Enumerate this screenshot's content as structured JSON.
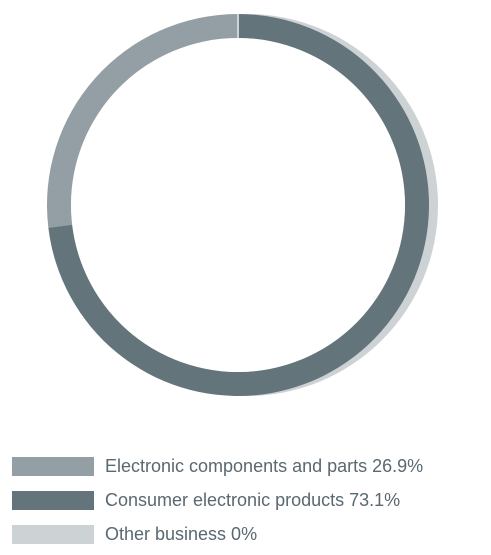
{
  "chart_data": {
    "type": "pie",
    "variant": "donut",
    "title": "",
    "legend_position": "bottom",
    "slices": [
      {
        "label": "Electronic components and parts 26.9%",
        "name": "Electronic components and parts",
        "value": 26.9,
        "color": "#939fa5"
      },
      {
        "label": "Consumer electronic products 73.1%",
        "name": "Consumer electronic products",
        "value": 73.1,
        "color": "#64747b"
      },
      {
        "label": "Other business 0%",
        "name": "Other business",
        "value": 0,
        "color": "#cdd2d5"
      }
    ],
    "start_angle_deg": -90,
    "direction": "counter-clockwise",
    "shadow_color": "#cdd2d5"
  }
}
